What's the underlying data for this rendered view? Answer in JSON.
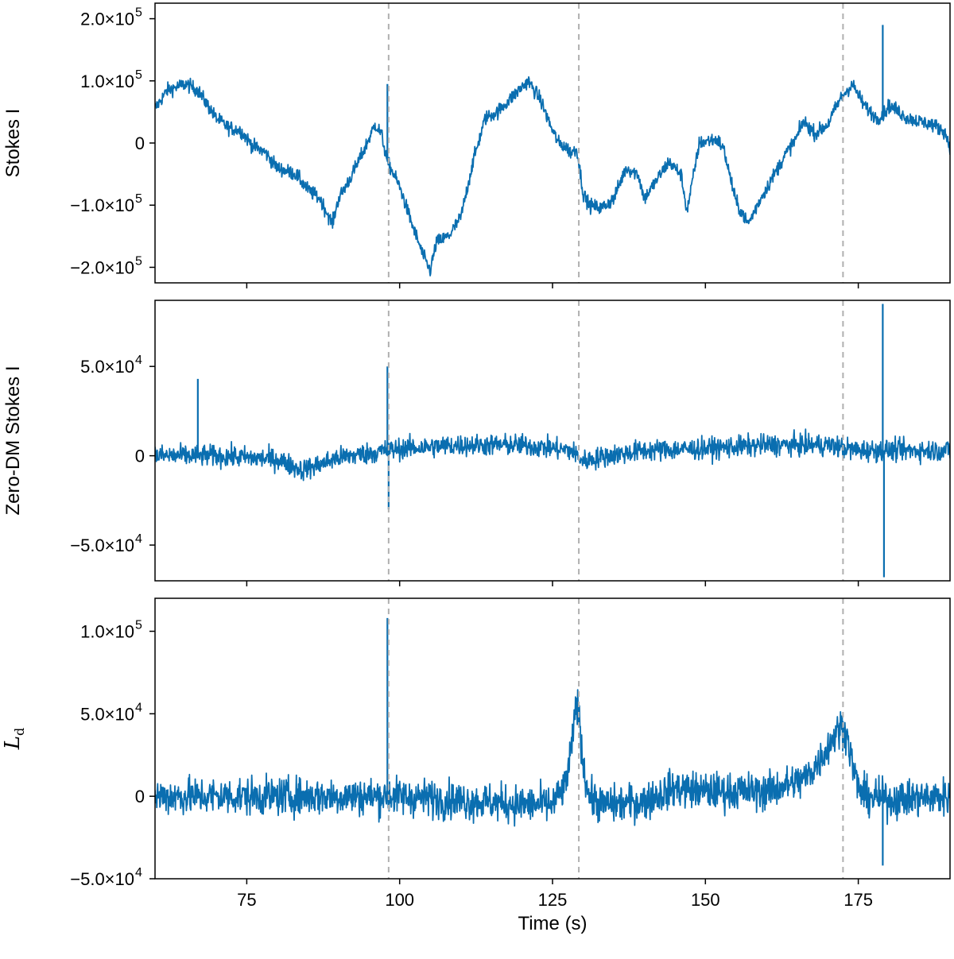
{
  "chart_data": [
    {
      "type": "line",
      "ylabel": "Stokes I",
      "xlim": [
        60,
        190
      ],
      "ylim": [
        -225000,
        225000
      ],
      "yticks": [
        -200000,
        -100000,
        0,
        100000,
        200000
      ],
      "ytick_labels": [
        "−2.0×10",
        "−1.0×10",
        "0",
        "1.0×10",
        "2.0×10"
      ],
      "ytick_exponents": [
        "5",
        "5",
        "",
        "5",
        "5"
      ],
      "series_color": "#0a6eb0",
      "trend": {
        "x": [
          60,
          62,
          65,
          67,
          70,
          72,
          74,
          76,
          78,
          80,
          83,
          85,
          87,
          89,
          90,
          92,
          94,
          96,
          97,
          98,
          100,
          102,
          104,
          105,
          106,
          108,
          110,
          112,
          114,
          116,
          118,
          121,
          123,
          125,
          126,
          127,
          128,
          129,
          130,
          131,
          133,
          135,
          137,
          139,
          140,
          142,
          144,
          146,
          147,
          149,
          151,
          152,
          153,
          155,
          157,
          159,
          161,
          163,
          165,
          166,
          168,
          170,
          172,
          174,
          176,
          178,
          179,
          180,
          181,
          183,
          185,
          187,
          189,
          190
        ],
        "y": [
          55000,
          85000,
          95000,
          85000,
          40000,
          25000,
          20000,
          -5000,
          -15000,
          -40000,
          -50000,
          -75000,
          -90000,
          -130000,
          -90000,
          -55000,
          -15000,
          30000,
          15000,
          -30000,
          -70000,
          -130000,
          -185000,
          -205000,
          -160000,
          -150000,
          -120000,
          -30000,
          40000,
          50000,
          70000,
          100000,
          70000,
          20000,
          0,
          -5000,
          -15000,
          -10000,
          -80000,
          -100000,
          -105000,
          -90000,
          -40000,
          -50000,
          -90000,
          -60000,
          -30000,
          -50000,
          -110000,
          0,
          5000,
          5000,
          -10000,
          -95000,
          -130000,
          -90000,
          -55000,
          -20000,
          10000,
          35000,
          15000,
          30000,
          70000,
          95000,
          60000,
          40000,
          45000,
          60000,
          55000,
          40000,
          35000,
          30000,
          20000,
          -5000
        ]
      },
      "noise_std": 8000,
      "spikes": [
        {
          "x": 98.0,
          "y": 95000
        },
        {
          "x": 179.0,
          "y": 190000
        }
      ]
    },
    {
      "type": "line",
      "ylabel": "Zero-DM Stokes I",
      "xlim": [
        60,
        190
      ],
      "ylim": [
        -70000,
        87000
      ],
      "yticks": [
        -50000,
        0,
        50000
      ],
      "ytick_labels": [
        "−5.0×10",
        "0",
        "5.0×10"
      ],
      "ytick_exponents": [
        "4",
        "",
        "4"
      ],
      "series_color": "#0a6eb0",
      "trend": {
        "x": [
          60,
          70,
          80,
          84,
          86,
          90,
          96,
          100,
          110,
          120,
          128,
          130,
          134,
          140,
          150,
          160,
          170,
          175,
          180,
          185,
          190
        ],
        "y": [
          0,
          0,
          -2000,
          -8000,
          -6000,
          -1000,
          2000,
          4000,
          6000,
          6000,
          3000,
          -3000,
          0,
          3000,
          4000,
          6000,
          6000,
          3000,
          3000,
          3000,
          3000
        ]
      },
      "noise_std": 4200,
      "spikes": [
        {
          "x": 67.0,
          "y": 43000
        },
        {
          "x": 98.0,
          "y": 50000
        },
        {
          "x": 98.2,
          "y": -30000
        },
        {
          "x": 179.0,
          "y": 85000
        },
        {
          "x": 179.2,
          "y": -68000
        }
      ]
    },
    {
      "type": "line",
      "ylabel": "Ld",
      "ylabel_main": "L",
      "ylabel_sub": "d",
      "xlabel": "Time (s)",
      "xlim": [
        60,
        190
      ],
      "ylim": [
        -50000,
        120000
      ],
      "xticks": [
        75,
        100,
        125,
        150,
        175
      ],
      "xtick_labels": [
        "75",
        "100",
        "125",
        "150",
        "175"
      ],
      "yticks": [
        -50000,
        0,
        50000,
        100000
      ],
      "ytick_labels": [
        "−5.0×10",
        "0",
        "5.0×10",
        "1.0×10"
      ],
      "ytick_exponents": [
        "4",
        "",
        "4",
        "5"
      ],
      "series_color": "#0a6eb0",
      "trend": {
        "x": [
          60,
          80,
          100,
          120,
          125,
          127,
          128,
          129,
          130,
          131,
          133,
          135,
          140,
          145,
          150,
          160,
          166,
          168,
          170,
          172,
          173,
          174,
          175,
          176,
          180,
          190
        ],
        "y": [
          0,
          0,
          0,
          -5000,
          -5000,
          5000,
          25000,
          60000,
          20000,
          0,
          -5000,
          -5000,
          -3000,
          5000,
          3000,
          3000,
          10000,
          18000,
          30000,
          42000,
          40000,
          20000,
          5000,
          0,
          -2000,
          0
        ]
      },
      "noise_std": 8000,
      "spikes": [
        {
          "x": 98.0,
          "y": 108000
        },
        {
          "x": 179.0,
          "y": -42000
        }
      ]
    }
  ],
  "vlines": {
    "x": [
      98.2,
      129.3,
      172.5
    ],
    "color": "#b0b0b0"
  }
}
